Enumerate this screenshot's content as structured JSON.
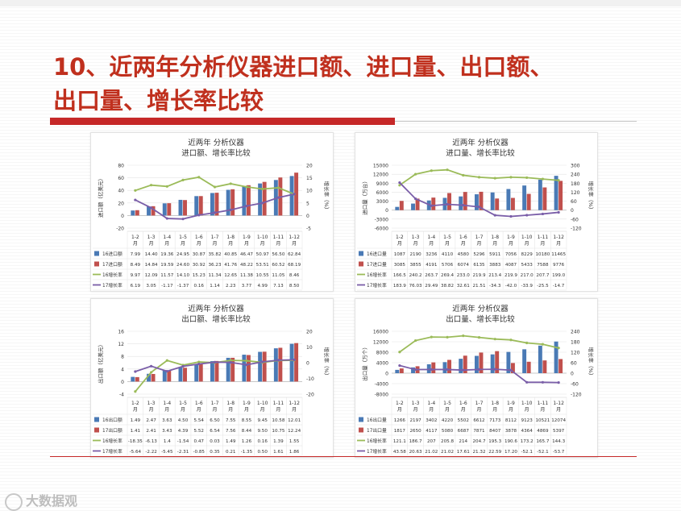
{
  "slide": {
    "title_line1": "10、近两年分析仪器进口额、进口量、出口额、",
    "title_line2": "出口量、增长率比较"
  },
  "watermark": {
    "text": "大数据观"
  },
  "colors": {
    "s16": "#4a7ab5",
    "s17": "#c0504d",
    "g16": "#9bbb59",
    "g17": "#7a5ea8",
    "title": "#c0301e"
  },
  "chart_data": [
    {
      "type": "bar",
      "title": "近两年 分析仪器",
      "subtitle": "进口额、增长率比较",
      "ylabel": "进口额（亿美元）",
      "y2label": "增长率（%）",
      "categories": [
        "1-2月",
        "1-3月",
        "1-4月",
        "1-5月",
        "1-6月",
        "1-7月",
        "1-8月",
        "1-9月",
        "1-10月",
        "1-11月",
        "1-12月"
      ],
      "ylim": [
        -20,
        80
      ],
      "yticks": [
        -20,
        0,
        20,
        40,
        60,
        80
      ],
      "y2lim": [
        -5,
        20
      ],
      "y2ticks": [
        -5,
        0,
        5,
        10,
        15,
        20
      ],
      "series": [
        {
          "name": "16进口额",
          "kind": "bar",
          "values": [
            7.99,
            14.4,
            19.36,
            24.95,
            30.87,
            35.82,
            40.85,
            46.47,
            50.97,
            56.5,
            62.84
          ]
        },
        {
          "name": "17进口额",
          "kind": "bar",
          "values": [
            8.49,
            14.84,
            19.59,
            24.6,
            30.92,
            36.23,
            41.76,
            48.22,
            53.51,
            60.52,
            68.19
          ]
        },
        {
          "name": "16增长率",
          "kind": "line",
          "values": [
            9.97,
            12.09,
            11.57,
            14.1,
            15.23,
            11.34,
            12.65,
            11.38,
            10.55,
            11.05,
            8.46
          ]
        },
        {
          "name": "17增长率",
          "kind": "line",
          "values": [
            6.19,
            3.05,
            -1.17,
            -1.37,
            0.16,
            1.14,
            2.23,
            3.77,
            4.99,
            7.13,
            8.5
          ]
        }
      ],
      "table_rows": [
        [
          "7.99",
          "14.40",
          "19.36",
          "24.95",
          "30.87",
          "35.82",
          "40.85",
          "46.47",
          "50.97",
          "56.50",
          "62.84"
        ],
        [
          "8.49",
          "14.84",
          "19.59",
          "24.60",
          "30.92",
          "36.23",
          "41.76",
          "48.22",
          "53.51",
          "60.52",
          "68.19"
        ],
        [
          "9.97",
          "12.09",
          "11.57",
          "14.10",
          "15.23",
          "11.34",
          "12.65",
          "11.38",
          "10.55",
          "11.05",
          "8.46"
        ],
        [
          "6.19",
          "3.05",
          "-1.17",
          "-1.37",
          "0.16",
          "1.14",
          "2.23",
          "3.77",
          "4.99",
          "7.13",
          "8.50"
        ]
      ]
    },
    {
      "type": "bar",
      "title": "近两年 分析仪器",
      "subtitle": "进口量、增长率比较",
      "ylabel": "进口量（万台）",
      "y2label": "增长率（%）",
      "categories": [
        "1-2月",
        "1-3月",
        "1-4月",
        "1-5月",
        "1-6月",
        "1-7月",
        "1-8月",
        "1-9月",
        "1-10月",
        "1-11月",
        "1-12月"
      ],
      "ylim": [
        -6000,
        15000
      ],
      "yticks": [
        -6000,
        -3000,
        0,
        3000,
        6000,
        9000,
        12000,
        15000
      ],
      "y2lim": [
        -120,
        300
      ],
      "y2ticks": [
        -120,
        -60,
        0,
        60,
        120,
        180,
        240,
        300
      ],
      "series": [
        {
          "name": "16进口量",
          "kind": "bar",
          "values": [
            1087,
            2190,
            3236,
            4110,
            4580,
            5296,
            5911,
            7056,
            8229,
            10180,
            11465
          ]
        },
        {
          "name": "17进口量",
          "kind": "bar",
          "values": [
            3085,
            3855,
            4191,
            5706,
            6074,
            6135,
            3883,
            4087,
            5433,
            7588,
            9776
          ]
        },
        {
          "name": "16增长率",
          "kind": "line",
          "values": [
            166.5,
            240.2,
            263.7,
            269.4,
            233.0,
            219.9,
            213.4,
            219.9,
            217.0,
            207.7,
            199.0
          ]
        },
        {
          "name": "17增长率",
          "kind": "line",
          "values": [
            183.9,
            76.03,
            29.49,
            38.82,
            32.61,
            21.51,
            -34.3,
            -42.0,
            -33.9,
            -25.5,
            -14.7
          ]
        }
      ],
      "table_rows": [
        [
          "1087",
          "2190",
          "3236",
          "4110",
          "4580",
          "5296",
          "5911",
          "7056",
          "8229",
          "10180",
          "11465"
        ],
        [
          "3085",
          "3855",
          "4191",
          "5706",
          "6074",
          "6135",
          "3883",
          "4087",
          "5433",
          "7588",
          "9776"
        ],
        [
          "166.5",
          "240.2",
          "263.7",
          "269.4",
          "233.0",
          "219.9",
          "213.4",
          "219.9",
          "217.0",
          "207.7",
          "199.0"
        ],
        [
          "183.9",
          "76.03",
          "29.49",
          "38.82",
          "32.61",
          "21.51",
          "-34.3",
          "-42.0",
          "-33.9",
          "-25.5",
          "-14.7"
        ]
      ]
    },
    {
      "type": "bar",
      "title": "近两年 分析仪器",
      "subtitle": "出口额、增长率比较",
      "ylabel": "出口额（亿美元）",
      "y2label": "增长率（%）",
      "categories": [
        "1-2月",
        "1-3月",
        "1-4月",
        "1-5月",
        "1-6月",
        "1-7月",
        "1-8月",
        "1-9月",
        "1-10月",
        "1-11月",
        "1-12月"
      ],
      "ylim": [
        -4,
        16
      ],
      "yticks": [
        -4,
        0,
        4,
        8,
        12,
        16
      ],
      "y2lim": [
        -20,
        20
      ],
      "y2ticks": [
        -20,
        -10,
        0,
        10,
        20
      ],
      "series": [
        {
          "name": "16出口额",
          "kind": "bar",
          "values": [
            1.49,
            2.47,
            3.63,
            4.5,
            5.54,
            6.5,
            7.55,
            8.55,
            9.45,
            10.58,
            12.01
          ]
        },
        {
          "name": "17出口额",
          "kind": "bar",
          "values": [
            1.41,
            2.41,
            3.43,
            4.39,
            5.52,
            6.54,
            7.56,
            8.44,
            9.5,
            10.75,
            12.24
          ]
        },
        {
          "name": "16增长率",
          "kind": "line",
          "values": [
            -18.35,
            -6.13,
            1.4,
            -1.54,
            0.47,
            0.03,
            1.49,
            1.26,
            0.16,
            1.39,
            1.55
          ]
        },
        {
          "name": "17增长率",
          "kind": "line",
          "values": [
            -5.64,
            -2.22,
            -5.45,
            -2.31,
            -0.85,
            0.35,
            0.21,
            -1.35,
            0.5,
            1.61,
            1.86
          ]
        }
      ],
      "table_rows": [
        [
          "1.49",
          "2.47",
          "3.63",
          "4.50",
          "5.54",
          "6.50",
          "7.55",
          "8.55",
          "9.45",
          "10.58",
          "12.01"
        ],
        [
          "1.41",
          "2.41",
          "3.43",
          "4.39",
          "5.52",
          "6.54",
          "7.56",
          "8.44",
          "9.50",
          "10.75",
          "12.24"
        ],
        [
          "-18.35",
          "-6.13",
          "1.4",
          "-1.54",
          "0.47",
          "0.03",
          "1.49",
          "1.26",
          "0.16",
          "1.39",
          "1.55"
        ],
        [
          "-5.64",
          "-2.22",
          "-5.45",
          "-2.31",
          "-0.85",
          "0.35",
          "0.21",
          "-1.35",
          "0.50",
          "1.61",
          "1.86"
        ]
      ]
    },
    {
      "type": "bar",
      "title": "近两年 分析仪器",
      "subtitle": "出口量、增长率比较",
      "ylabel": "出口量（万个）",
      "y2label": "增长率（%）",
      "categories": [
        "1-2月",
        "1-3月",
        "1-4月",
        "1-5月",
        "1-6月",
        "1-7月",
        "1-8月",
        "1-9月",
        "1-10月",
        "1-11月",
        "1-12月"
      ],
      "ylim": [
        -8000,
        16000
      ],
      "yticks": [
        -8000,
        -4000,
        0,
        4000,
        8000,
        12000,
        16000
      ],
      "y2lim": [
        -120,
        240
      ],
      "y2ticks": [
        -120,
        -60,
        0,
        60,
        120,
        180,
        240
      ],
      "series": [
        {
          "name": "16出口量",
          "kind": "bar",
          "values": [
            1266,
            2197,
            3402,
            4220,
            5502,
            6612,
            7173,
            8112,
            9123,
            10521,
            12074
          ]
        },
        {
          "name": "17出口量",
          "kind": "bar",
          "values": [
            1817,
            2650,
            4117,
            5080,
            6687,
            7871,
            8407,
            3878,
            4364,
            4869,
            5397
          ]
        },
        {
          "name": "16增长率",
          "kind": "line",
          "values": [
            121.1,
            186.7,
            207,
            205.8,
            214,
            204.7,
            195.3,
            190.6,
            173.2,
            165.7,
            144.3
          ]
        },
        {
          "name": "17增长率",
          "kind": "line",
          "values": [
            43.58,
            20.63,
            21.02,
            21.02,
            17.61,
            21.32,
            22.59,
            17.2,
            -52.1,
            -52.1,
            -53.7
          ]
        }
      ],
      "table_rows": [
        [
          "1266",
          "2197",
          "3402",
          "4220",
          "5502",
          "6612",
          "7173",
          "8112",
          "9123",
          "10521",
          "12074"
        ],
        [
          "1817",
          "2650",
          "4117",
          "5080",
          "6687",
          "7871",
          "8407",
          "3878",
          "4364",
          "4869",
          "5397"
        ],
        [
          "121.1",
          "186.7",
          "207",
          "205.8",
          "214",
          "204.7",
          "195.3",
          "190.6",
          "173.2",
          "165.7",
          "144.3"
        ],
        [
          "43.58",
          "20.63",
          "21.02",
          "21.02",
          "17.61",
          "21.32",
          "22.59",
          "17.20",
          "-52.1",
          "-52.1",
          "-53.7"
        ]
      ]
    }
  ]
}
